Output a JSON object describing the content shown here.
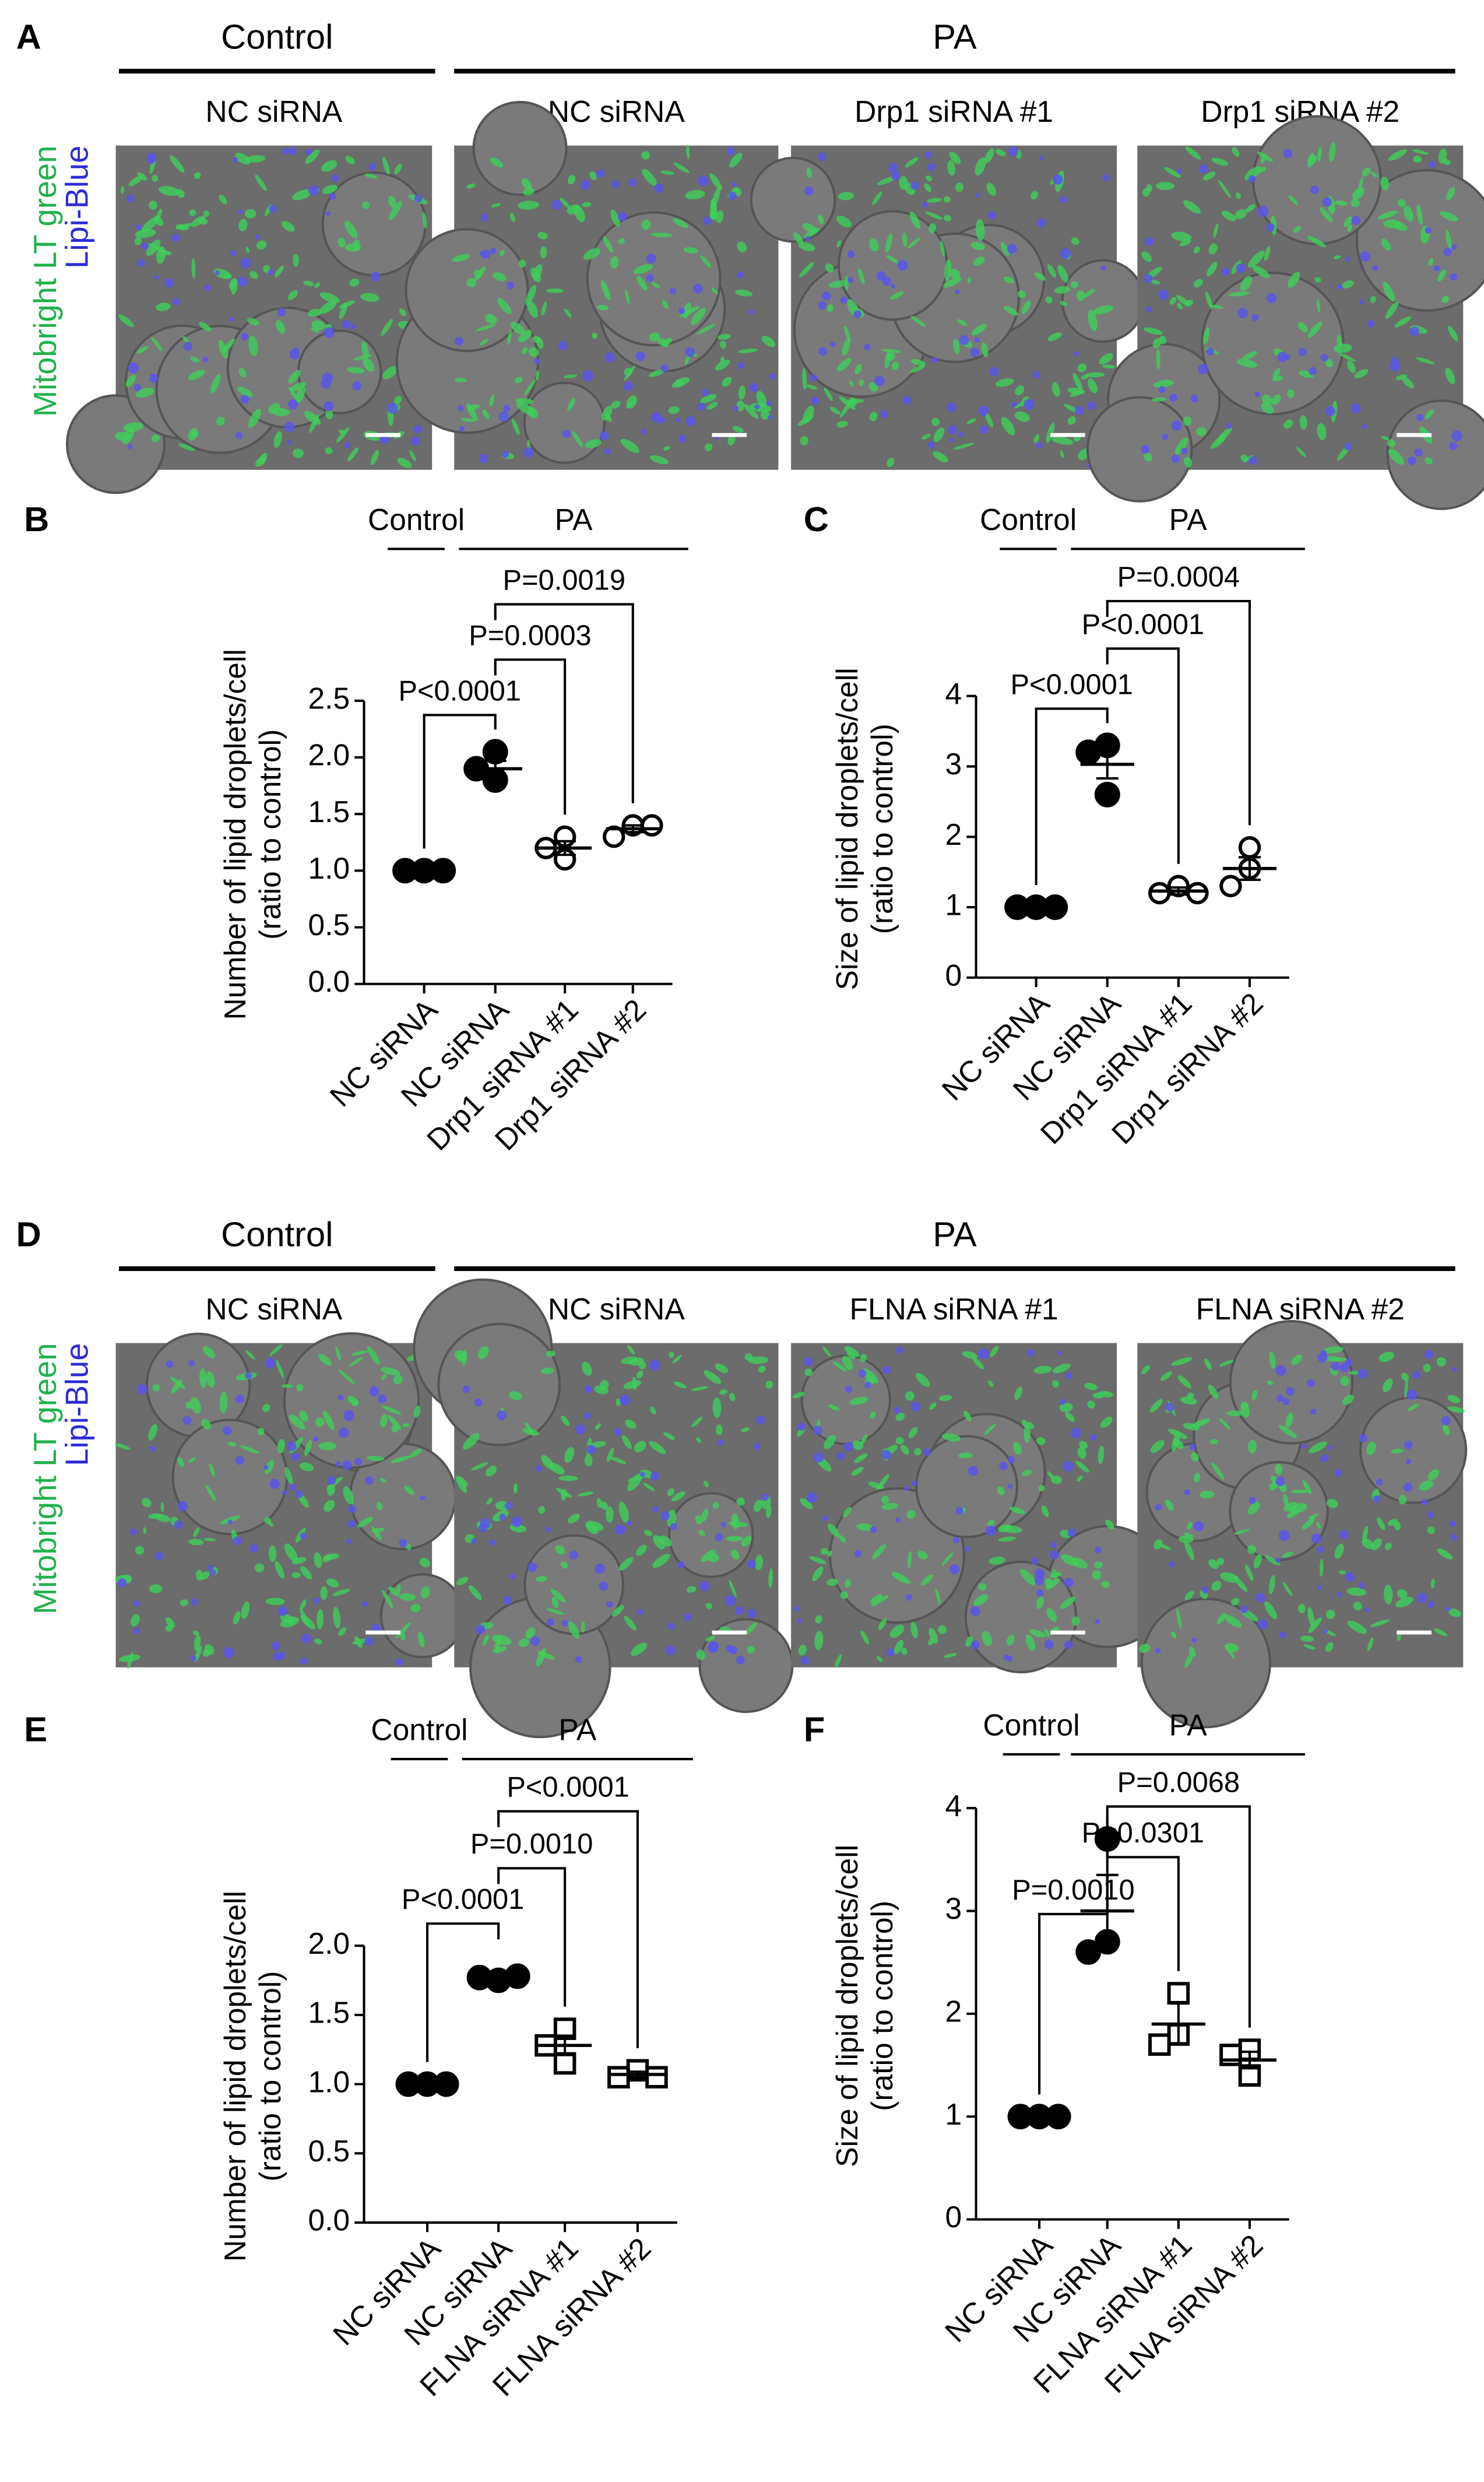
{
  "image_panels": [
    {
      "panel": "A",
      "groups": [
        "Control",
        "PA"
      ],
      "columns": [
        "NC siRNA",
        "NC siRNA",
        "Drp1 siRNA #1",
        "Drp1 siRNA #2"
      ],
      "stains": [
        "Mitobright LT green",
        "Lipi-Blue"
      ]
    },
    {
      "panel": "D",
      "groups": [
        "Control",
        "PA"
      ],
      "columns": [
        "NC siRNA",
        "NC siRNA",
        "FLNA siRNA #1",
        "FLNA siRNA #2"
      ],
      "stains": [
        "Mitobright LT green",
        "Lipi-Blue"
      ]
    }
  ],
  "chart_data": [
    {
      "type": "dot",
      "panel": "B",
      "groups": [
        "Control",
        "PA"
      ],
      "ylabel": [
        "Number of lipid droplets/cell",
        "(ratio to control)"
      ],
      "categories": [
        "NC siRNA",
        "NC siRNA",
        "Drp1 siRNA #1",
        "Drp1 siRNA #2"
      ],
      "markers": [
        "filled-circle",
        "filled-circle",
        "open-circle",
        "open-circle"
      ],
      "color": "#000000",
      "points": [
        [
          1,
          1,
          1
        ],
        [
          2.05,
          1.9,
          1.8
        ],
        [
          1.3,
          1.1,
          1.2
        ],
        [
          1.4,
          1.3,
          1.4
        ]
      ],
      "means": [
        1,
        1.9,
        1.2,
        1.37
      ],
      "sems": [
        0,
        0.07,
        0.06,
        0.03
      ],
      "p_values": [
        "P<0.0001",
        "P=0.0003",
        "P=0.0019"
      ],
      "ylim": [
        0,
        2.5
      ],
      "yticks": [
        {
          "value": 0,
          "label": "0.0"
        },
        0.5,
        {
          "value": 1,
          "label": "1.0"
        },
        1.5,
        {
          "value": 2,
          "label": "2.0"
        },
        2.5
      ]
    },
    {
      "type": "dot",
      "panel": "C",
      "groups": [
        "Control",
        "PA"
      ],
      "ylabel": [
        "Size of lipid droplets/cell",
        "(ratio to control)"
      ],
      "categories": [
        "NC siRNA",
        "NC siRNA",
        "Drp1 siRNA #1",
        "Drp1 siRNA #2"
      ],
      "markers": [
        "filled-circle",
        "filled-circle",
        "open-circle",
        "open-circle"
      ],
      "color": "#000000",
      "points": [
        [
          1,
          1,
          1
        ],
        [
          3.3,
          3.2,
          2.6
        ],
        [
          1.3,
          1.2,
          1.2
        ],
        [
          1.85,
          1.55,
          1.3
        ]
      ],
      "means": [
        1,
        3.03,
        1.23,
        1.55
      ],
      "sems": [
        0,
        0.2,
        0.05,
        0.16
      ],
      "p_values": [
        "P<0.0001",
        "P<0.0001",
        "P=0.0004"
      ],
      "ylim": [
        0,
        4
      ],
      "yticks": [
        0,
        1,
        2,
        3,
        4
      ]
    },
    {
      "type": "dot",
      "panel": "E",
      "groups": [
        "Control",
        "PA"
      ],
      "ylabel": [
        "Number of lipid droplets/cell",
        "(ratio to control)"
      ],
      "categories": [
        "NC siRNA",
        "NC siRNA",
        "FLNA siRNA #1",
        "FLNA siRNA #2"
      ],
      "markers": [
        "filled-circle",
        "filled-circle",
        "open-square",
        "open-square"
      ],
      "color": "#000000",
      "points": [
        [
          1,
          1,
          1
        ],
        [
          1.75,
          1.77,
          1.78
        ],
        [
          1.4,
          1.28,
          1.15
        ],
        [
          1.1,
          1.05,
          1.05
        ]
      ],
      "means": [
        1,
        1.77,
        1.28,
        1.07
      ],
      "sems": [
        0,
        0.01,
        0.07,
        0.02
      ],
      "p_values": [
        "P<0.0001",
        "P=0.0010",
        "P<0.0001"
      ],
      "ylim": [
        0,
        2
      ],
      "yticks": [
        {
          "value": 0,
          "label": "0.0"
        },
        0.5,
        {
          "value": 1,
          "label": "1.0"
        },
        1.5,
        {
          "value": 2,
          "label": "2.0"
        }
      ]
    },
    {
      "type": "dot",
      "panel": "F",
      "groups": [
        "Control",
        "PA"
      ],
      "ylabel": [
        "Size of lipid droplets/cell",
        "(ratio to control)"
      ],
      "categories": [
        "NC siRNA",
        "NC siRNA",
        "FLNA siRNA #1",
        "FLNA siRNA #2"
      ],
      "markers": [
        "filled-circle",
        "filled-circle",
        "open-square",
        "open-square"
      ],
      "color": "#000000",
      "points": [
        [
          1,
          1,
          1
        ],
        [
          3.7,
          2.7,
          2.6
        ],
        [
          2.2,
          1.8,
          1.7
        ],
        [
          1.65,
          1.6,
          1.4
        ]
      ],
      "means": [
        1,
        3,
        1.9,
        1.55
      ],
      "sems": [
        0,
        0.35,
        0.2,
        0.08
      ],
      "p_values": [
        "P=0.0010",
        "P=0.0301",
        "P=0.0068"
      ],
      "ylim": [
        0,
        4
      ],
      "yticks": [
        0,
        1,
        2,
        3,
        4
      ]
    }
  ]
}
